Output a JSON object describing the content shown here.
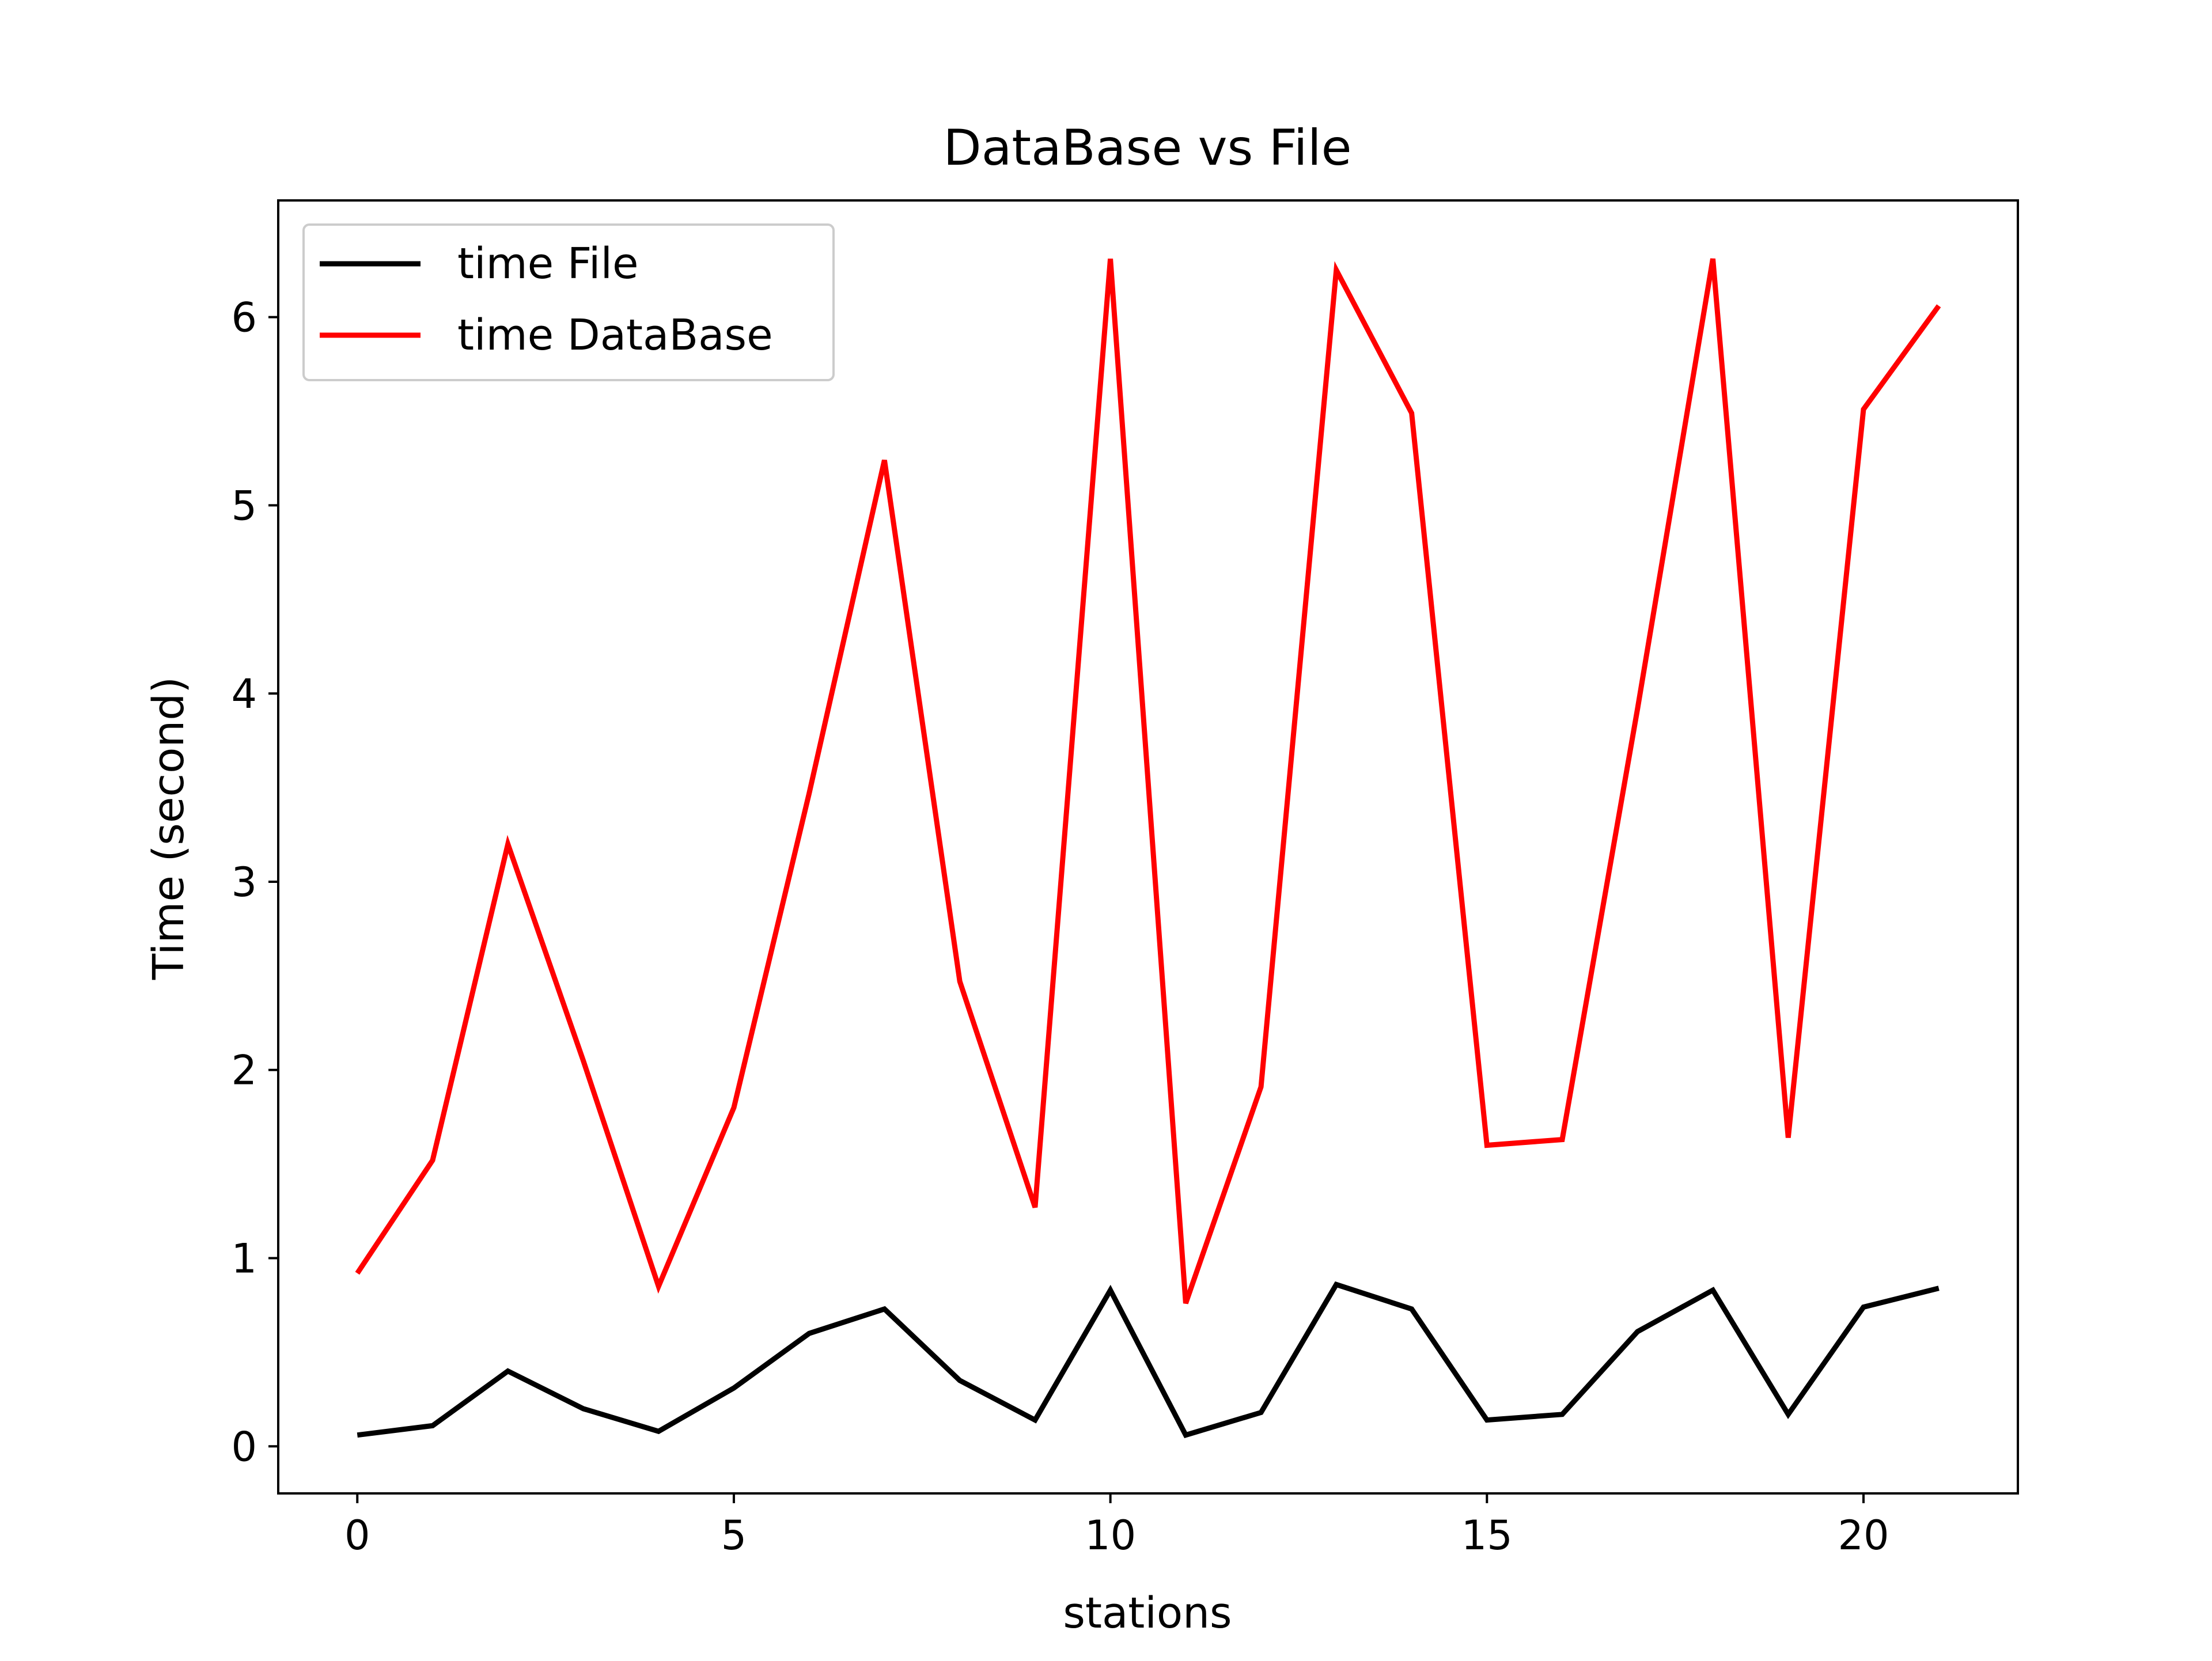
{
  "chart_data": {
    "type": "line",
    "title": "DataBase vs File",
    "xlabel": "stations",
    "ylabel": "Time (second)",
    "xlim": [
      -1.05,
      22.05
    ],
    "ylim": [
      -0.25,
      6.62
    ],
    "x_ticks": [
      0,
      5,
      10,
      15,
      20
    ],
    "y_ticks": [
      0,
      1,
      2,
      3,
      4,
      5,
      6
    ],
    "grid": false,
    "legend_position": "upper-left",
    "x": [
      0,
      1,
      2,
      3,
      4,
      5,
      6,
      7,
      8,
      9,
      10,
      11,
      12,
      13,
      14,
      15,
      16,
      17,
      18,
      19,
      20,
      21
    ],
    "series": [
      {
        "name": "time File",
        "color": "#000000",
        "values": [
          0.06,
          0.11,
          0.4,
          0.2,
          0.08,
          0.31,
          0.6,
          0.73,
          0.35,
          0.14,
          0.83,
          0.06,
          0.18,
          0.86,
          0.73,
          0.14,
          0.17,
          0.61,
          0.83,
          0.17,
          0.74,
          0.84
        ]
      },
      {
        "name": "time DataBase",
        "color": "#ff0000",
        "values": [
          0.92,
          1.52,
          3.2,
          2.05,
          0.85,
          1.8,
          3.47,
          5.24,
          2.47,
          1.27,
          6.31,
          0.76,
          1.91,
          6.25,
          5.49,
          1.6,
          1.63,
          3.92,
          6.31,
          1.64,
          5.51,
          6.06
        ]
      }
    ]
  }
}
